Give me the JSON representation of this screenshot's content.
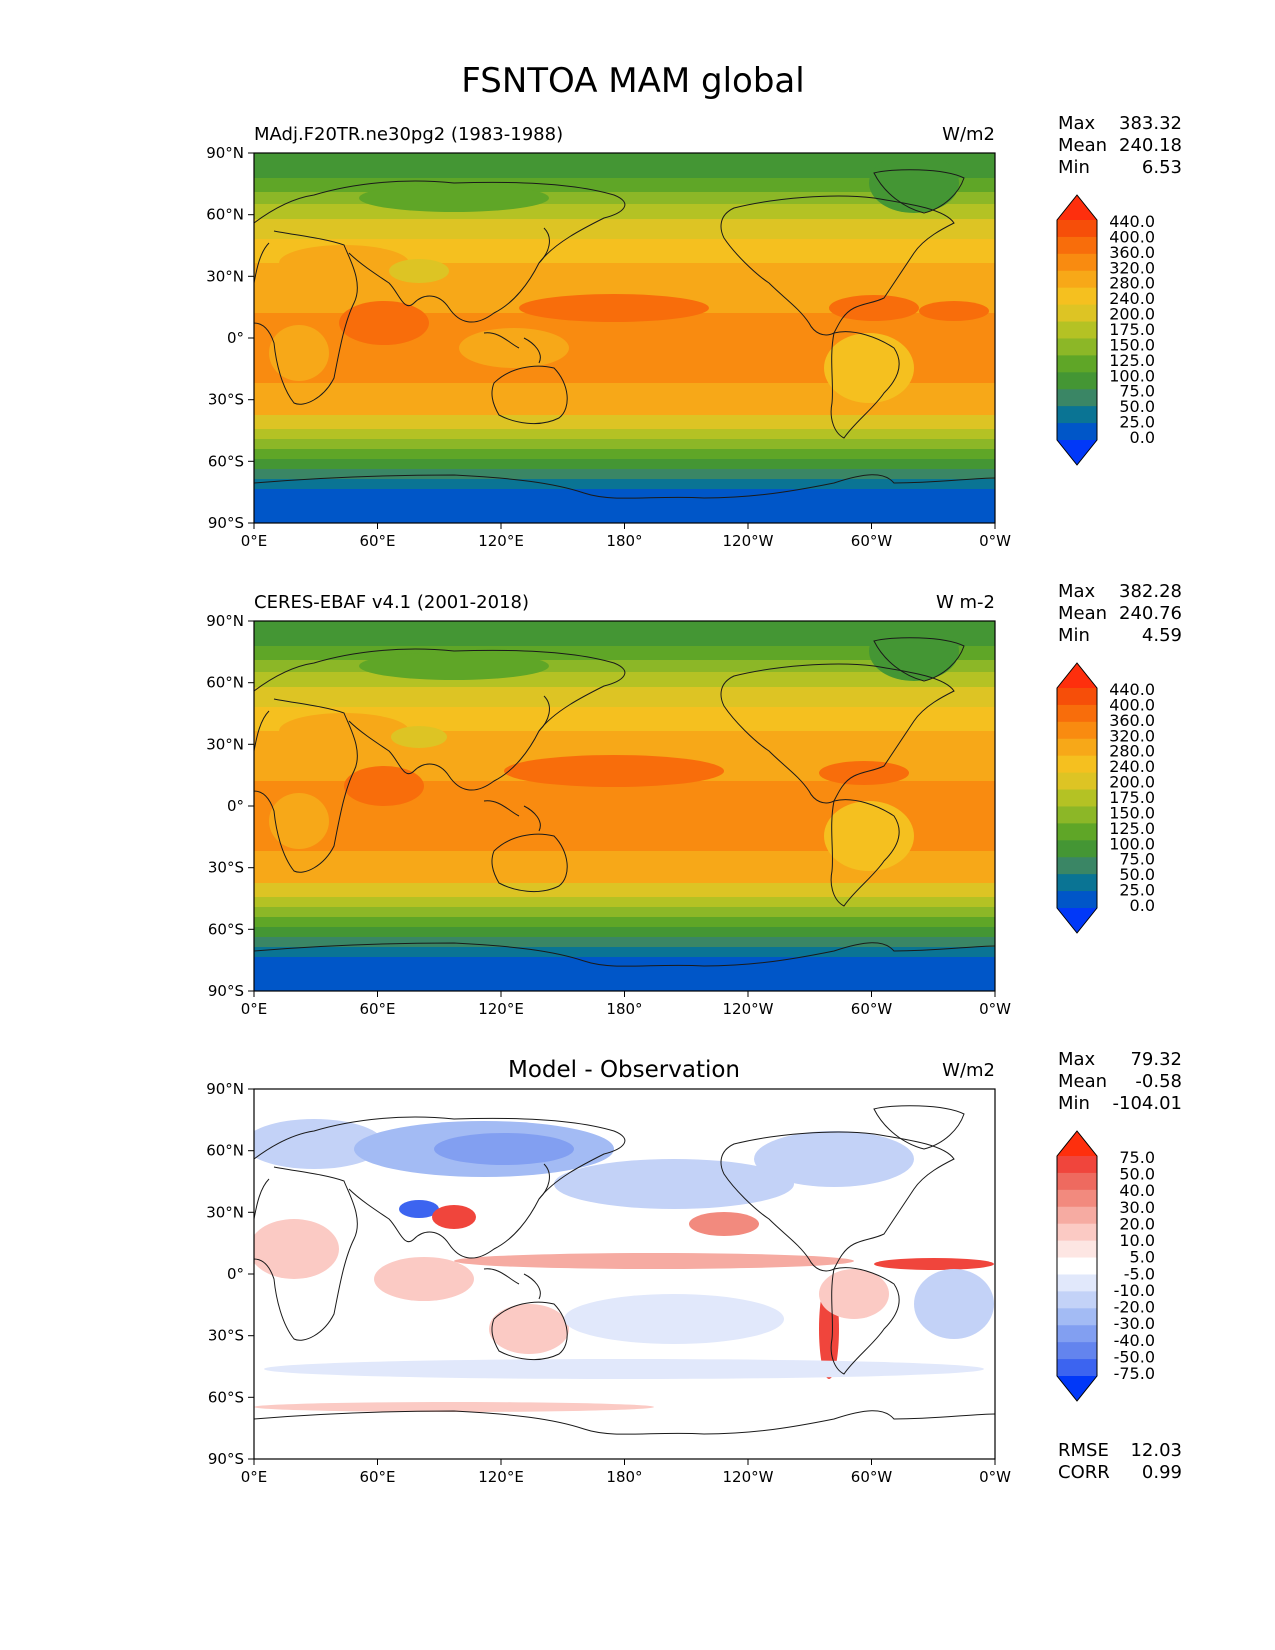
{
  "title": "FSNTOA MAM global",
  "xticks": [
    "0°E",
    "60°E",
    "120°E",
    "180°",
    "120°W",
    "60°W",
    "0°W"
  ],
  "yticks": [
    "90°N",
    "60°N",
    "30°N",
    "0°",
    "30°S",
    "60°S",
    "90°S"
  ],
  "panels": [
    {
      "left_title": "MAdj.F20TR.ne30pg2 (1983-1988)",
      "center_title": "",
      "units": "W/m2",
      "stats": [
        {
          "label": "Max",
          "value": "383.32"
        },
        {
          "label": "Mean",
          "value": "240.18"
        },
        {
          "label": "Min",
          "value": "6.53"
        }
      ],
      "extra_stats": [],
      "colorbar": {
        "labels": [
          "440.0",
          "400.0",
          "360.0",
          "320.0",
          "280.0",
          "240.0",
          "200.0",
          "175.0",
          "150.0",
          "125.0",
          "100.0",
          "75.0",
          "50.0",
          "25.0",
          "0.0"
        ],
        "colors": [
          "#fe2f0d",
          "#f64e09",
          "#f86d0b",
          "#f98b10",
          "#f7a818",
          "#f5c01f",
          "#ddc424",
          "#b4c224",
          "#8cb727",
          "#5fa627",
          "#449634",
          "#3a8665",
          "#0a7494",
          "#0056c8",
          "#0138f8"
        ]
      }
    },
    {
      "left_title": "CERES-EBAF v4.1 (2001-2018)",
      "center_title": "",
      "units": "W m-2",
      "stats": [
        {
          "label": "Max",
          "value": "382.28"
        },
        {
          "label": "Mean",
          "value": "240.76"
        },
        {
          "label": "Min",
          "value": "4.59"
        }
      ],
      "extra_stats": [],
      "colorbar": {
        "labels": [
          "440.0",
          "400.0",
          "360.0",
          "320.0",
          "280.0",
          "240.0",
          "200.0",
          "175.0",
          "150.0",
          "125.0",
          "100.0",
          "75.0",
          "50.0",
          "25.0",
          "0.0"
        ],
        "colors": [
          "#fe2f0d",
          "#f64e09",
          "#f86d0b",
          "#f98b10",
          "#f7a818",
          "#f5c01f",
          "#ddc424",
          "#b4c224",
          "#8cb727",
          "#5fa627",
          "#449634",
          "#3a8665",
          "#0a7494",
          "#0056c8",
          "#0138f8"
        ]
      }
    },
    {
      "left_title": "",
      "center_title": "Model - Observation",
      "units": "W/m2",
      "stats": [
        {
          "label": "Max",
          "value": "79.32"
        },
        {
          "label": "Mean",
          "value": "-0.58"
        },
        {
          "label": "Min",
          "value": "-104.01"
        }
      ],
      "extra_stats": [
        {
          "label": "RMSE",
          "value": "12.03"
        },
        {
          "label": "CORR",
          "value": "0.99"
        }
      ],
      "colorbar": {
        "labels": [
          "75.0",
          "50.0",
          "40.0",
          "30.0",
          "20.0",
          "10.0",
          "5.0",
          "-5.0",
          "-10.0",
          "-20.0",
          "-30.0",
          "-40.0",
          "-50.0",
          "-75.0"
        ],
        "colors": [
          "#fe2f0d",
          "#f0453c",
          "#ee6a5f",
          "#f28a7e",
          "#f6aba2",
          "#fbcac4",
          "#fde6e3",
          "#ffffff",
          "#e1e8fb",
          "#c3d2f7",
          "#a3bbf4",
          "#829ff1",
          "#6384ee",
          "#3c64f0",
          "#0138f8"
        ]
      }
    }
  ],
  "chart_data": [
    {
      "type": "heatmap",
      "title": "MAdj.F20TR.ne30pg2 (1983-1988)",
      "variable": "FSNTOA",
      "season": "MAM",
      "units": "W/m2",
      "x_range": [
        0,
        360
      ],
      "y_range": [
        -90,
        90
      ],
      "levels": [
        0,
        25,
        50,
        75,
        100,
        125,
        150,
        175,
        200,
        240,
        280,
        320,
        360,
        400,
        440
      ],
      "zonal_mean_profile": {
        "lat": [
          90,
          80,
          70,
          60,
          50,
          40,
          30,
          20,
          10,
          0,
          -10,
          -20,
          -30,
          -40,
          -50,
          -60,
          -70,
          -80,
          -90
        ],
        "values": [
          130,
          140,
          160,
          190,
          230,
          265,
          295,
          325,
          310,
          300,
          305,
          295,
          255,
          205,
          160,
          120,
          70,
          40,
          35
        ]
      },
      "max": 383.32,
      "mean": 240.18,
      "min": 6.53
    },
    {
      "type": "heatmap",
      "title": "CERES-EBAF v4.1 (2001-2018)",
      "variable": "FSNTOA",
      "season": "MAM",
      "units": "W m-2",
      "x_range": [
        0,
        360
      ],
      "y_range": [
        -90,
        90
      ],
      "levels": [
        0,
        25,
        50,
        75,
        100,
        125,
        150,
        175,
        200,
        240,
        280,
        320,
        360,
        400,
        440
      ],
      "zonal_mean_profile": {
        "lat": [
          90,
          80,
          70,
          60,
          50,
          40,
          30,
          20,
          10,
          0,
          -10,
          -20,
          -30,
          -40,
          -50,
          -60,
          -70,
          -80,
          -90
        ],
        "values": [
          130,
          140,
          165,
          195,
          235,
          265,
          295,
          330,
          315,
          300,
          305,
          295,
          255,
          205,
          160,
          120,
          70,
          40,
          35
        ]
      },
      "max": 382.28,
      "mean": 240.76,
      "min": 4.59
    },
    {
      "type": "heatmap",
      "title": "Model - Observation",
      "units": "W/m2",
      "x_range": [
        0,
        360
      ],
      "y_range": [
        -90,
        90
      ],
      "levels": [
        -75,
        -50,
        -40,
        -30,
        -20,
        -10,
        -5,
        5,
        10,
        20,
        30,
        40,
        50,
        75
      ],
      "max": 79.32,
      "mean": -0.58,
      "min": -104.01,
      "rmse": 12.03,
      "corr": 0.99
    }
  ]
}
